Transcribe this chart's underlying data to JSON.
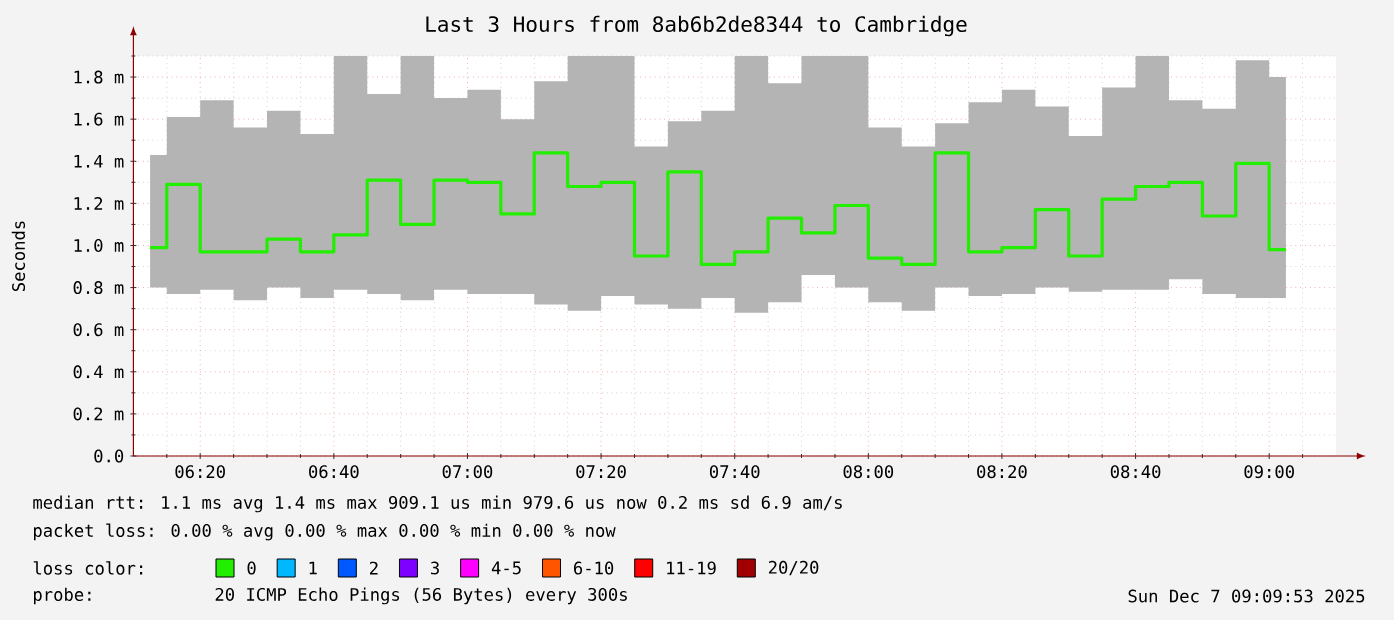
{
  "chart_data": {
    "type": "step",
    "title": "Last 3 Hours from 8ab6b2de8344 to Cambridge",
    "ylabel": "Seconds",
    "legend_title": "loss color:",
    "legend": "bottom",
    "grid": true,
    "x": [
      6.2083,
      6.2917,
      6.375,
      6.4583,
      6.5417,
      6.625,
      6.7083,
      6.7917,
      6.875,
      6.9583,
      7.0417,
      7.125,
      7.2083,
      7.2917,
      7.375,
      7.4583,
      7.5417,
      7.625,
      7.7083,
      7.7917,
      7.875,
      7.9583,
      8.0417,
      8.125,
      8.2083,
      8.2917,
      8.375,
      8.4583,
      8.5417,
      8.625,
      8.7083,
      8.7917,
      8.875,
      8.9583,
      9.0417
    ],
    "xlim": [
      6.1667,
      9.1667
    ],
    "xticks": [
      {
        "value": 6.25,
        "label": null
      },
      {
        "value": 6.3333,
        "label": "06:20"
      },
      {
        "value": 6.4167,
        "label": null
      },
      {
        "value": 6.5,
        "label": null
      },
      {
        "value": 6.5833,
        "label": null
      },
      {
        "value": 6.6667,
        "label": "06:40"
      },
      {
        "value": 6.75,
        "label": null
      },
      {
        "value": 6.8333,
        "label": null
      },
      {
        "value": 6.9167,
        "label": null
      },
      {
        "value": 7,
        "label": "07:00"
      },
      {
        "value": 7.0833,
        "label": null
      },
      {
        "value": 7.1667,
        "label": null
      },
      {
        "value": 7.25,
        "label": null
      },
      {
        "value": 7.3333,
        "label": "07:20"
      },
      {
        "value": 7.4167,
        "label": null
      },
      {
        "value": 7.5,
        "label": null
      },
      {
        "value": 7.5833,
        "label": null
      },
      {
        "value": 7.6667,
        "label": "07:40"
      },
      {
        "value": 7.75,
        "label": null
      },
      {
        "value": 7.8333,
        "label": null
      },
      {
        "value": 7.9167,
        "label": null
      },
      {
        "value": 8,
        "label": "08:00"
      },
      {
        "value": 8.0833,
        "label": null
      },
      {
        "value": 8.1667,
        "label": null
      },
      {
        "value": 8.25,
        "label": null
      },
      {
        "value": 8.3333,
        "label": "08:20"
      },
      {
        "value": 8.4167,
        "label": null
      },
      {
        "value": 8.5,
        "label": null
      },
      {
        "value": 8.5833,
        "label": null
      },
      {
        "value": 8.6667,
        "label": "08:40"
      },
      {
        "value": 8.75,
        "label": null
      },
      {
        "value": 8.8333,
        "label": null
      },
      {
        "value": 8.9167,
        "label": null
      },
      {
        "value": 9,
        "label": "09:00"
      },
      {
        "value": 9.0833,
        "label": null
      }
    ],
    "ylim": [
      0,
      1.9
    ],
    "yticks": [
      {
        "value": 0,
        "label": "0.0"
      },
      {
        "value": 0.1,
        "label": null
      },
      {
        "value": 0.2,
        "label": "0.2 m"
      },
      {
        "value": 0.3,
        "label": null
      },
      {
        "value": 0.4,
        "label": "0.4 m"
      },
      {
        "value": 0.5,
        "label": null
      },
      {
        "value": 0.6,
        "label": "0.6 m"
      },
      {
        "value": 0.7,
        "label": null
      },
      {
        "value": 0.8,
        "label": "0.8 m"
      },
      {
        "value": 0.9,
        "label": null
      },
      {
        "value": 1.0,
        "label": "1.0 m"
      },
      {
        "value": 1.1,
        "label": null
      },
      {
        "value": 1.2,
        "label": "1.2 m"
      },
      {
        "value": 1.3,
        "label": null
      },
      {
        "value": 1.4,
        "label": "1.4 m"
      },
      {
        "value": 1.5,
        "label": null
      },
      {
        "value": 1.6,
        "label": "1.6 m"
      },
      {
        "value": 1.7,
        "label": null
      },
      {
        "value": 1.8,
        "label": "1.8 m"
      },
      {
        "value": 1.9,
        "label": null
      }
    ],
    "series": [
      {
        "name": "0",
        "color": "#22ee00",
        "values": [
          0.99,
          1.29,
          0.97,
          0.97,
          1.03,
          0.97,
          1.05,
          1.31,
          1.1,
          1.31,
          1.3,
          1.15,
          1.44,
          1.28,
          1.3,
          0.95,
          1.35,
          0.91,
          0.97,
          1.13,
          1.06,
          1.19,
          0.94,
          0.91,
          1.44,
          0.97,
          0.99,
          1.17,
          0.95,
          1.22,
          1.28,
          1.3,
          1.14,
          1.39,
          0.98
        ],
        "lower": [
          0.8,
          0.77,
          0.79,
          0.74,
          0.8,
          0.75,
          0.79,
          0.77,
          0.74,
          0.79,
          0.77,
          0.77,
          0.72,
          0.69,
          0.76,
          0.72,
          0.7,
          0.75,
          0.68,
          0.73,
          0.86,
          0.8,
          0.73,
          0.69,
          0.8,
          0.76,
          0.77,
          0.8,
          0.78,
          0.79,
          0.79,
          0.84,
          0.77,
          0.75,
          0.75
        ],
        "upper": [
          1.43,
          1.61,
          1.69,
          1.56,
          1.64,
          1.53,
          1.9,
          1.72,
          1.9,
          1.7,
          1.74,
          1.6,
          1.78,
          1.9,
          1.9,
          1.47,
          1.59,
          1.64,
          1.9,
          1.77,
          1.9,
          1.9,
          1.56,
          1.47,
          1.58,
          1.68,
          1.74,
          1.66,
          1.52,
          1.75,
          1.9,
          1.69,
          1.65,
          1.88,
          1.8
        ]
      },
      {
        "name": "1",
        "color": "#00b8ff",
        "values": [
          null,
          null,
          null,
          null,
          null,
          null,
          null,
          null,
          null,
          null,
          null,
          null,
          null,
          null,
          null,
          null,
          null,
          null,
          null,
          null,
          null,
          null,
          null,
          null,
          null,
          null,
          null,
          null,
          null,
          null,
          null,
          null,
          null,
          null,
          null
        ]
      },
      {
        "name": "2",
        "color": "#0059ff",
        "values": [
          null,
          null,
          null,
          null,
          null,
          null,
          null,
          null,
          null,
          null,
          null,
          null,
          null,
          null,
          null,
          null,
          null,
          null,
          null,
          null,
          null,
          null,
          null,
          null,
          null,
          null,
          null,
          null,
          null,
          null,
          null,
          null,
          null,
          null,
          null
        ]
      },
      {
        "name": "3",
        "color": "#7e00ff",
        "values": [
          null,
          null,
          null,
          null,
          null,
          null,
          null,
          null,
          null,
          null,
          null,
          null,
          null,
          null,
          null,
          null,
          null,
          null,
          null,
          null,
          null,
          null,
          null,
          null,
          null,
          null,
          null,
          null,
          null,
          null,
          null,
          null,
          null,
          null,
          null
        ]
      },
      {
        "name": "4-5",
        "color": "#ff00ff",
        "values": [
          null,
          null,
          null,
          null,
          null,
          null,
          null,
          null,
          null,
          null,
          null,
          null,
          null,
          null,
          null,
          null,
          null,
          null,
          null,
          null,
          null,
          null,
          null,
          null,
          null,
          null,
          null,
          null,
          null,
          null,
          null,
          null,
          null,
          null,
          null
        ]
      },
      {
        "name": "6-10",
        "color": "#ff5500",
        "values": [
          null,
          null,
          null,
          null,
          null,
          null,
          null,
          null,
          null,
          null,
          null,
          null,
          null,
          null,
          null,
          null,
          null,
          null,
          null,
          null,
          null,
          null,
          null,
          null,
          null,
          null,
          null,
          null,
          null,
          null,
          null,
          null,
          null,
          null,
          null
        ]
      },
      {
        "name": "11-19",
        "color": "#ff0000",
        "values": [
          null,
          null,
          null,
          null,
          null,
          null,
          null,
          null,
          null,
          null,
          null,
          null,
          null,
          null,
          null,
          null,
          null,
          null,
          null,
          null,
          null,
          null,
          null,
          null,
          null,
          null,
          null,
          null,
          null,
          null,
          null,
          null,
          null,
          null,
          null
        ]
      },
      {
        "name": "20/20",
        "color": "#a10000",
        "values": [
          null,
          null,
          null,
          null,
          null,
          null,
          null,
          null,
          null,
          null,
          null,
          null,
          null,
          null,
          null,
          null,
          null,
          null,
          null,
          null,
          null,
          null,
          null,
          null,
          null,
          null,
          null,
          null,
          null,
          null,
          null,
          null,
          null,
          null,
          null
        ]
      }
    ],
    "annotations": [
      "median rtt: 1.1 ms avg 1.4 ms max 909.1 us min 979.6 us now 0.2 ms sd 6.9 am/s",
      "packet loss: 0.00 % avg 0.00 % max 0.00 % min 0.00 % now",
      "probe:",
      "20 ICMP Echo Pings (56 Bytes) every 300s",
      "Sun Dec 7 09:09:53 2025"
    ]
  }
}
